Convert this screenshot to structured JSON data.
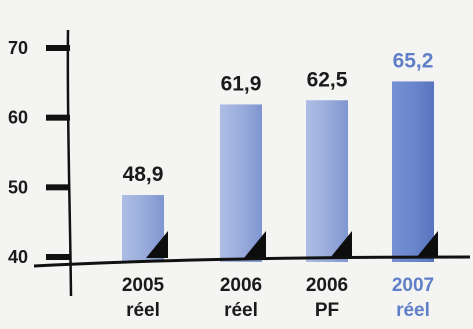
{
  "chart_data": {
    "type": "bar",
    "categories": [
      [
        "2005",
        "réel"
      ],
      [
        "2006",
        "réel"
      ],
      [
        "2006",
        "PF"
      ],
      [
        "2007",
        "réel"
      ]
    ],
    "values": [
      48.9,
      61.9,
      62.5,
      65.2
    ],
    "value_labels": [
      "48,9",
      "61,9",
      "62,5",
      "65,2"
    ],
    "highlight_index": 3,
    "ylim": [
      40,
      70
    ],
    "yticks": [
      40,
      50,
      60,
      70
    ],
    "ytick_labels": [
      "40",
      "50",
      "60",
      "70"
    ],
    "title": "",
    "xlabel": "",
    "ylabel": "",
    "grid": false,
    "colors": {
      "bar": "#8ea2d6",
      "bar_highlight": "#5f7fc8",
      "text": "#1a1a1a",
      "highlight_text": "#5f7fc8",
      "axis": "#111111"
    }
  }
}
